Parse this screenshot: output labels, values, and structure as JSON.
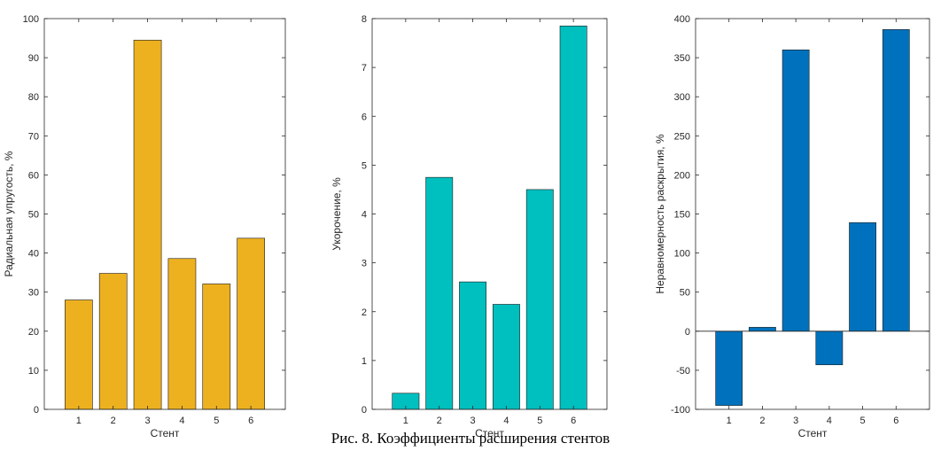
{
  "figure": {
    "caption": "Рис. 8. Коэффициенты расширения стентов"
  },
  "chart_data": [
    {
      "type": "bar",
      "categories": [
        "1",
        "2",
        "3",
        "4",
        "5",
        "6"
      ],
      "values": [
        28,
        34.8,
        94.5,
        38.6,
        32.1,
        43.8
      ],
      "xlabel": "Стент",
      "ylabel": "Радиальная упругость, %",
      "ylim": [
        0,
        100
      ],
      "yticks": [
        0,
        10,
        20,
        30,
        40,
        50,
        60,
        70,
        80,
        90,
        100
      ],
      "bar_color": "#EDB120",
      "grid": false
    },
    {
      "type": "bar",
      "categories": [
        "1",
        "2",
        "3",
        "4",
        "5",
        "6"
      ],
      "values": [
        0.33,
        4.75,
        2.61,
        2.15,
        4.5,
        7.85
      ],
      "xlabel": "Стент",
      "ylabel": "Укорочение, %",
      "ylim": [
        0,
        8
      ],
      "yticks": [
        0,
        1,
        2,
        3,
        4,
        5,
        6,
        7,
        8
      ],
      "bar_color": "#00BFBF",
      "grid": false
    },
    {
      "type": "bar",
      "categories": [
        "1",
        "2",
        "3",
        "4",
        "5",
        "6"
      ],
      "values": [
        -95,
        5,
        360,
        -43,
        139,
        386
      ],
      "xlabel": "Стент",
      "ylabel": "Неравномерность раскрытия, %",
      "ylim": [
        -100,
        400
      ],
      "yticks": [
        -100,
        -50,
        0,
        50,
        100,
        150,
        200,
        250,
        300,
        350,
        400
      ],
      "bar_color": "#0072BD",
      "grid": false
    }
  ]
}
